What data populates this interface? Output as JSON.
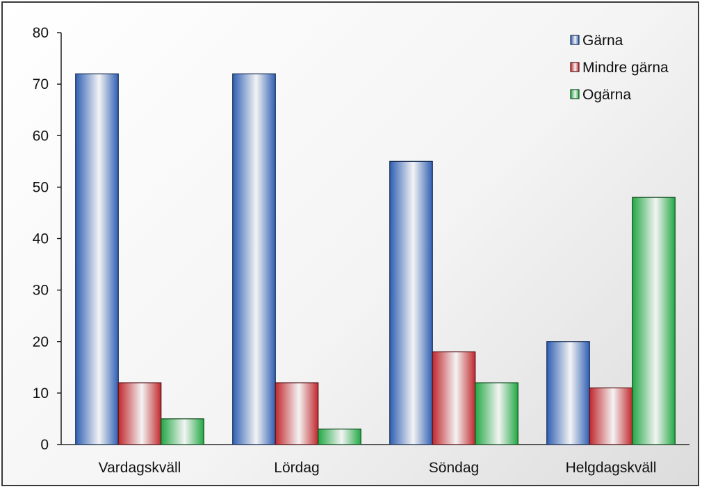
{
  "chart_data": {
    "type": "bar",
    "categories": [
      "Vardagskväll",
      "Lördag",
      "Söndag",
      "Helgdagskväll"
    ],
    "series": [
      {
        "name": "Gärna",
        "values": [
          72,
          72,
          55,
          20
        ],
        "color": "#2f5fb3"
      },
      {
        "name": "Mindre gärna",
        "values": [
          12,
          12,
          18,
          11
        ],
        "color": "#c0282d"
      },
      {
        "name": "Ogärna",
        "values": [
          5,
          3,
          12,
          48
        ],
        "color": "#22a844"
      }
    ],
    "ylim": [
      0,
      80
    ],
    "yticks": [
      "0",
      "10",
      "20",
      "30",
      "40",
      "50",
      "60",
      "70",
      "80"
    ],
    "grid": false,
    "legend_position": "top-right"
  }
}
